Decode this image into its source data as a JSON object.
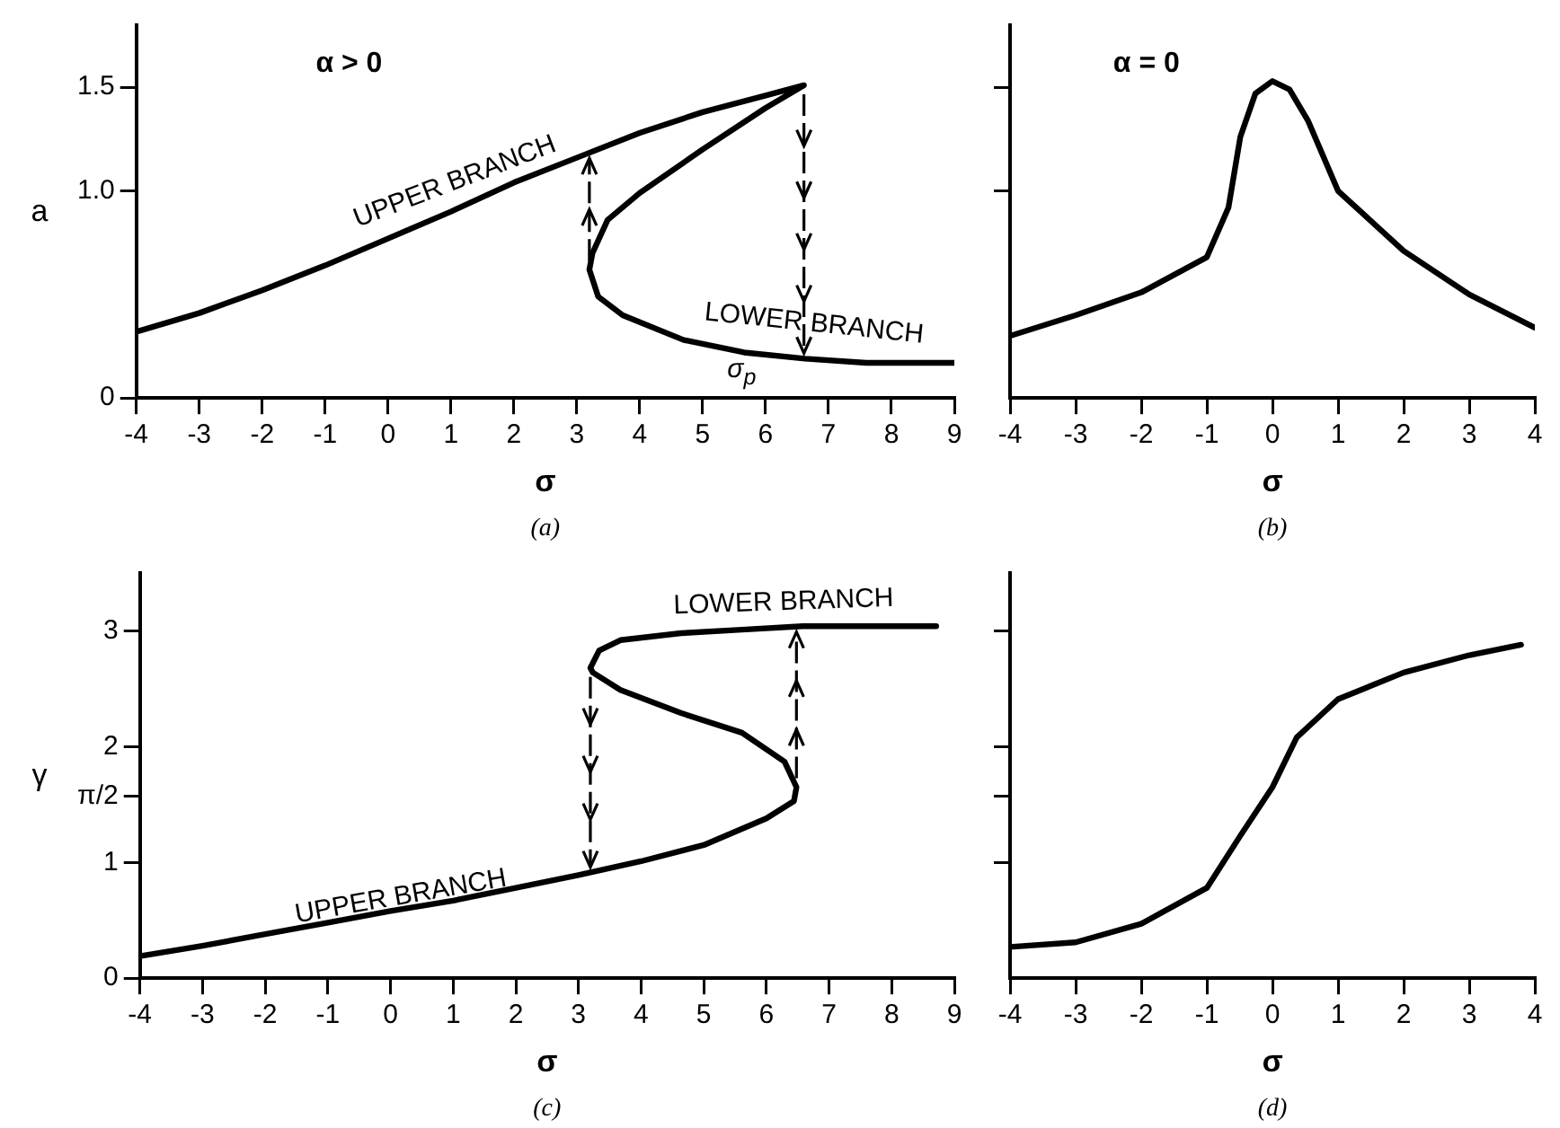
{
  "chart_data": [
    {
      "type": "line",
      "title": "α > 0",
      "xlabel": "σ",
      "ylabel": "a",
      "xlim": [
        -4,
        9
      ],
      "ylim": [
        0,
        1.8
      ],
      "xticks": [
        -4,
        -3,
        -2,
        -1,
        0,
        1,
        2,
        3,
        4,
        5,
        6,
        7,
        8,
        9
      ],
      "yticks": [
        0,
        {
          "value": 1,
          "label": "1.0"
        },
        1.5
      ],
      "grid": false,
      "legend": false,
      "marker": "none",
      "line_style": "solid",
      "series": [
        {
          "color": "#000000",
          "x": [
            -4,
            -3,
            -2,
            -1,
            0,
            1,
            2,
            3,
            4,
            5,
            6,
            6.61,
            6,
            5,
            4,
            3.49,
            3.25,
            3.2,
            3.34,
            3.73,
            4.7,
            5.66,
            6.63,
            7.6,
            9
          ],
          "values": [
            0.32,
            0.41,
            0.52,
            0.64,
            0.77,
            0.9,
            1.04,
            1.16,
            1.28,
            1.38,
            1.46,
            1.51,
            1.4,
            1.2,
            0.99,
            0.86,
            0.7,
            0.62,
            0.49,
            0.4,
            0.28,
            0.22,
            0.19,
            0.17,
            0.17
          ]
        }
      ],
      "annotations": [
        "UPPER BRANCH",
        {
          "text": "LOWER BRANCH",
          "x": 6.61,
          "y": 0.19
        },
        "σ$_{p}$",
        "(a)"
      ]
    },
    {
      "type": "line",
      "title": "α = 0",
      "xlabel": "σ",
      "xlim": [
        -4,
        4
      ],
      "ylim": [
        0,
        1.8
      ],
      "xticks": [
        -4,
        -3,
        -2,
        -1,
        0,
        1,
        2,
        3,
        4
      ],
      "yticks": [
        {
          "value": 1,
          "label": null
        },
        {
          "value": 1.5,
          "label": null
        }
      ],
      "tick_labels": "x",
      "grid": false,
      "legend": false,
      "marker": "none",
      "line_style": "solid",
      "series": [
        {
          "color": "#000000",
          "x": [
            -4,
            -3,
            -2,
            -1,
            -0.67,
            -0.49,
            -0.26,
            0,
            0.26,
            0.54,
            1,
            2,
            3,
            4
          ],
          "values": [
            0.3,
            0.4,
            0.51,
            0.68,
            0.92,
            1.26,
            1.47,
            1.53,
            1.49,
            1.34,
            1,
            0.71,
            0.5,
            0.34
          ]
        }
      ],
      "annotations": [
        "(b)"
      ]
    },
    {
      "type": "line",
      "xlabel": "σ",
      "ylabel": "γ",
      "xlim": [
        -4,
        9
      ],
      "ylim": [
        0,
        3.5
      ],
      "xticks": [
        -4,
        -3,
        -2,
        -1,
        0,
        1,
        2,
        3,
        4,
        5,
        6,
        7,
        8,
        9
      ],
      "yticks": [
        0,
        1,
        {
          "value": 1.5708,
          "label": "π/2"
        },
        2,
        3
      ],
      "grid": false,
      "legend": false,
      "marker": "none",
      "line_style": "solid",
      "series": [
        {
          "color": "#000000",
          "x": [
            -4,
            -3,
            -2,
            -1,
            0,
            1,
            2,
            3,
            4,
            5,
            6,
            6.44,
            6.48,
            6.29,
            5.61,
            4.64,
            3.67,
            3.23,
            3.19,
            3.33,
            3.67,
            4.64,
            5.61,
            6.58,
            7.55,
            8.71
          ],
          "values": [
            0.19,
            0.28,
            0.38,
            0.48,
            0.58,
            0.67,
            0.78,
            0.89,
            1.01,
            1.15,
            1.38,
            1.53,
            1.65,
            1.87,
            2.12,
            2.29,
            2.49,
            2.64,
            2.68,
            2.83,
            2.92,
            2.98,
            3.01,
            3.04,
            3.04,
            3.04
          ]
        }
      ],
      "annotations": [
        {
          "text": "LOWER BRANCH",
          "x": 6.48,
          "y": 3.04
        },
        "UPPER BRANCH",
        "(c)"
      ]
    },
    {
      "type": "line",
      "xlabel": "σ",
      "xlim": [
        -4,
        4
      ],
      "ylim": [
        0,
        3.5
      ],
      "xticks": [
        -4,
        -3,
        -2,
        -1,
        0,
        1,
        2,
        3,
        4
      ],
      "yticks": [
        {
          "value": 1,
          "label": null
        },
        {
          "value": 1.5708,
          "label": null
        },
        {
          "value": 2,
          "label": null
        },
        {
          "value": 3,
          "label": null
        }
      ],
      "tick_labels": "x",
      "grid": false,
      "legend": false,
      "marker": "none",
      "line_style": "solid",
      "series": [
        {
          "color": "#000000",
          "x": [
            -4,
            -3,
            -2,
            -1,
            -0.49,
            0,
            0.37,
            1,
            2,
            3,
            3.79
          ],
          "values": [
            0.27,
            0.31,
            0.47,
            0.78,
            1.23,
            1.65,
            2.08,
            2.41,
            2.64,
            2.79,
            2.88
          ]
        }
      ],
      "annotations": [
        "(d)"
      ]
    }
  ]
}
